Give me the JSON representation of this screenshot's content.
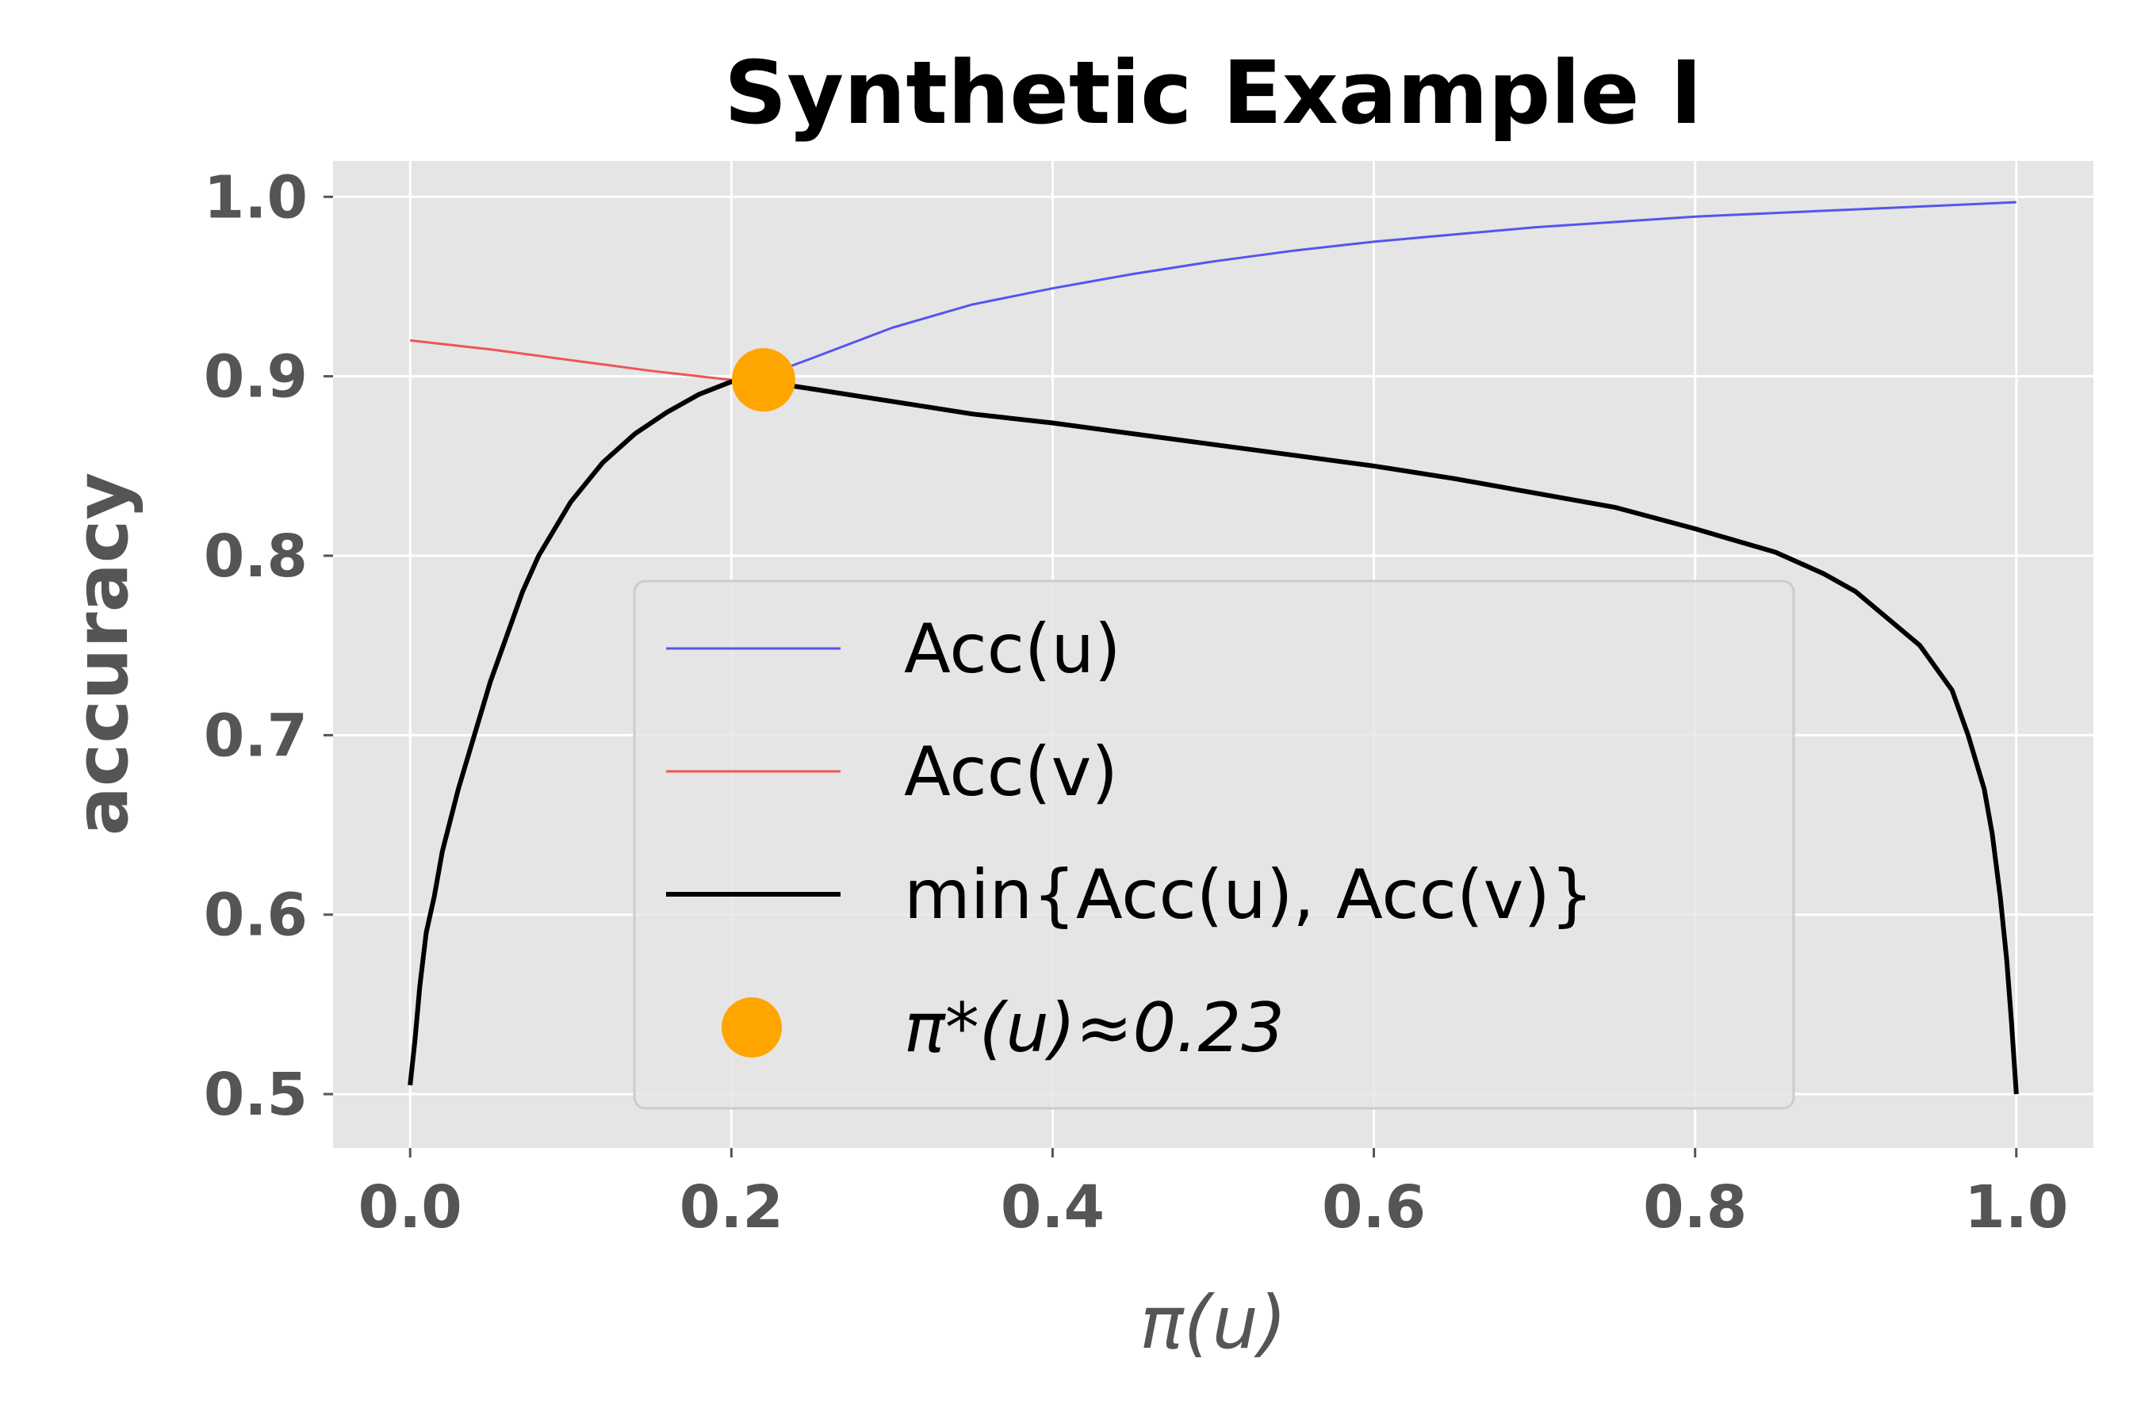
{
  "chart_data": {
    "type": "line",
    "title": "Synthetic Example I",
    "xlabel": "π(u)",
    "ylabel": "accuracy",
    "xlim": [
      -0.048,
      1.048
    ],
    "ylim": [
      0.47,
      1.02
    ],
    "xticks": [
      0.0,
      0.2,
      0.4,
      0.6,
      0.8,
      1.0
    ],
    "xtick_labels": [
      "0.0",
      "0.2",
      "0.4",
      "0.6",
      "0.8",
      "1.0"
    ],
    "yticks": [
      0.5,
      0.6,
      0.7,
      0.8,
      0.9,
      1.0
    ],
    "ytick_labels": [
      "0.5",
      "0.6",
      "0.7",
      "0.8",
      "0.9",
      "1.0"
    ],
    "grid": true,
    "background": "#e5e5e5",
    "legend_position": "lower-center",
    "series": [
      {
        "name": "Acc(u)",
        "color": "#5555ee",
        "x": [
          0.22,
          0.25,
          0.3,
          0.35,
          0.4,
          0.45,
          0.5,
          0.55,
          0.6,
          0.65,
          0.7,
          0.75,
          0.8,
          0.85,
          0.9,
          0.95,
          1.0
        ],
        "y": [
          0.9,
          0.91,
          0.927,
          0.94,
          0.949,
          0.957,
          0.964,
          0.97,
          0.975,
          0.979,
          0.983,
          0.986,
          0.989,
          0.991,
          0.993,
          0.995,
          0.997
        ]
      },
      {
        "name": "Acc(v)",
        "color": "#ee5555",
        "x": [
          0.0,
          0.05,
          0.1,
          0.15,
          0.2,
          0.22
        ],
        "y": [
          0.92,
          0.915,
          0.909,
          0.903,
          0.898,
          0.897
        ]
      },
      {
        "name": "min{Acc(u), Acc(v)}",
        "color": "#000000",
        "x": [
          0.0,
          0.003,
          0.006,
          0.01,
          0.015,
          0.02,
          0.03,
          0.04,
          0.05,
          0.06,
          0.07,
          0.08,
          0.1,
          0.12,
          0.14,
          0.16,
          0.18,
          0.2,
          0.22,
          0.25,
          0.3,
          0.35,
          0.4,
          0.45,
          0.5,
          0.55,
          0.6,
          0.65,
          0.7,
          0.75,
          0.8,
          0.85,
          0.88,
          0.9,
          0.92,
          0.94,
          0.96,
          0.97,
          0.98,
          0.985,
          0.99,
          0.994,
          0.997,
          1.0
        ],
        "y": [
          0.505,
          0.53,
          0.56,
          0.59,
          0.61,
          0.635,
          0.67,
          0.7,
          0.73,
          0.755,
          0.78,
          0.8,
          0.83,
          0.852,
          0.868,
          0.88,
          0.89,
          0.897,
          0.897,
          0.893,
          0.886,
          0.879,
          0.874,
          0.868,
          0.862,
          0.856,
          0.85,
          0.843,
          0.835,
          0.827,
          0.815,
          0.802,
          0.79,
          0.78,
          0.765,
          0.75,
          0.725,
          0.7,
          0.67,
          0.645,
          0.61,
          0.575,
          0.54,
          0.5
        ]
      }
    ],
    "marker": {
      "name": "π*(u)≈0.23",
      "x": 0.22,
      "y": 0.898,
      "color": "#ffa500"
    }
  }
}
